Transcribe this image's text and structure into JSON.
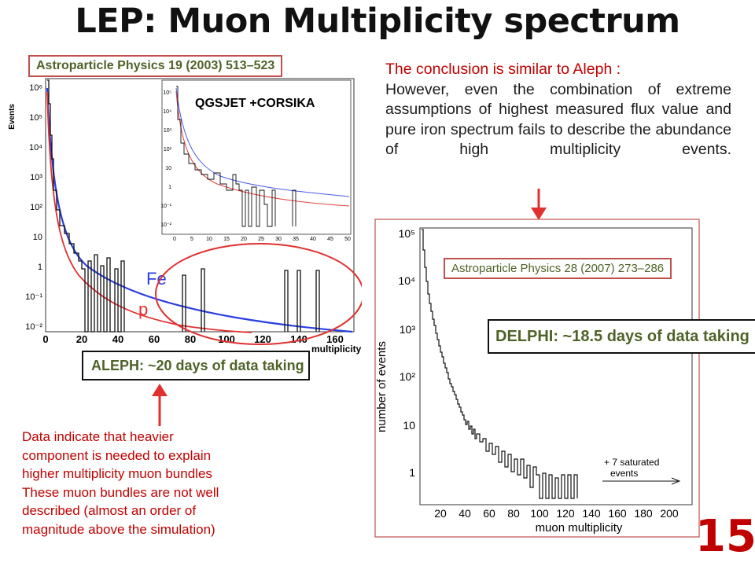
{
  "slide": {
    "title": "LEP: Muon Multiplicity spectrum",
    "page_number": "15",
    "accent_color": "#c00000",
    "ref_color": "#4f6228"
  },
  "aleph": {
    "reference": "Astroparticle Physics 19 (2003) 513–523",
    "data_label": "ALEPH: ~20 days of data taking",
    "ylabel": "Events",
    "xlabel": "multiplicity",
    "y_tick_labels": [
      "10⁶",
      "10⁵",
      "10⁴",
      "10³",
      "10²",
      "10",
      "1",
      "10⁻¹",
      "10⁻²"
    ],
    "x_tick_labels": [
      "0",
      "20",
      "40",
      "60",
      "80",
      "100",
      "120",
      "140",
      "160"
    ],
    "curve_label_fe": "Fe",
    "curve_label_p": "p",
    "inset": {
      "label": "QGSJET +CORSIKA",
      "y_tick_labels": [
        "10⁵",
        "10⁴",
        "10³",
        "10²",
        "10",
        "1",
        "10⁻¹",
        "10⁻²"
      ],
      "x_tick_labels": [
        "0",
        "5",
        "10",
        "15",
        "20",
        "25",
        "30",
        "35",
        "40",
        "45",
        "50"
      ]
    }
  },
  "delphi": {
    "reference": "Astroparticle Physics 28 (2007) 273–286",
    "data_label": "DELPHI: ~18.5 days of data taking",
    "ylabel": "number of events",
    "xlabel": "muon multiplicity",
    "y_tick_labels": [
      "10⁵",
      "10⁴",
      "10³",
      "10²",
      "10",
      "1"
    ],
    "x_tick_labels": [
      "20",
      "40",
      "60",
      "80",
      "100",
      "120",
      "140",
      "160",
      "180",
      "200"
    ],
    "saturated_note": [
      "+ 7 saturated",
      "events"
    ]
  },
  "conclusion": {
    "lead": "The conclusion is similar to Aleph :",
    "body": "However, even the combination of extreme assumptions of highest measured flux value and pure iron spectrum fails to describe the abundance of high multiplicity events."
  },
  "note": {
    "lines": [
      "Data indicate that heavier",
      "component is needed to explain",
      "higher multiplicity muon bundles",
      "These muon bundles are not well",
      "described (almost an order of",
      "magnitude above the simulation)"
    ]
  }
}
